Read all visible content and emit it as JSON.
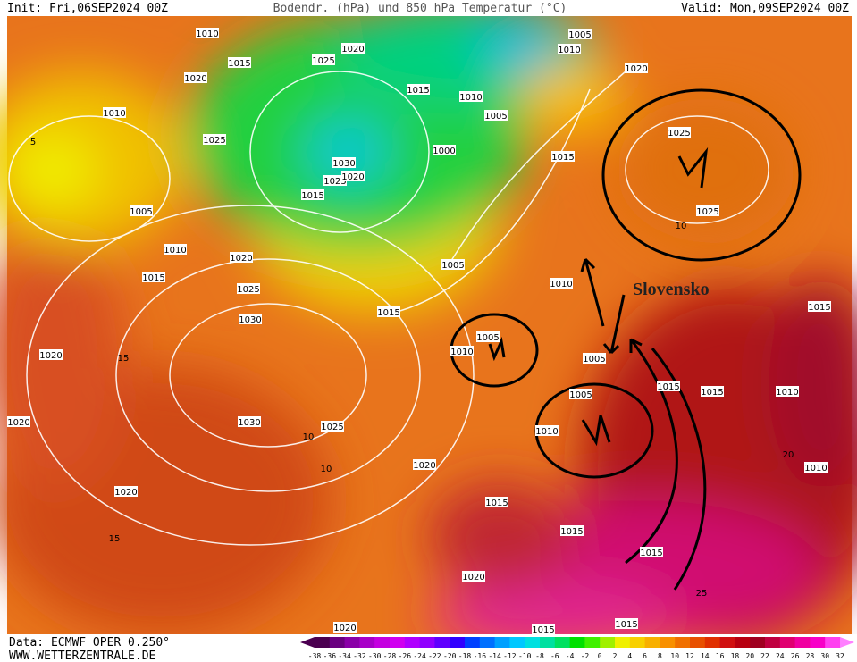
{
  "header": {
    "init": "Init: Fri,06SEP2024 00Z",
    "title": "Bodendr. (hPa) und 850 hPa Temperatur (°C)",
    "valid": "Valid: Mon,09SEP2024 00Z"
  },
  "footer": {
    "source": "Data: ECMWF OPER 0.250°",
    "site": "WWW.WETTERZENTRALE.DE"
  },
  "annotation": "Slovensko",
  "isobar_labels": [
    "1010",
    "1015",
    "1020",
    "1020",
    "1025",
    "1015",
    "1005",
    "1010",
    "1020",
    "1010",
    "1010",
    "1005",
    "1025",
    "1030",
    "1025",
    "1020",
    "1015",
    "1000",
    "1015",
    "1025",
    "1025",
    "1005",
    "1010",
    "1015",
    "1020",
    "1005",
    "1010",
    "1025",
    "1015",
    "1030",
    "1005",
    "1010",
    "1005",
    "1020",
    "1015",
    "1015",
    "1015",
    "1010",
    "1005",
    "1030",
    "1025",
    "1010",
    "1020",
    "1020",
    "1010",
    "1020",
    "1015",
    "1015",
    "1015",
    "1020",
    "1015",
    "1015",
    "1020"
  ],
  "isotherm_labels": [
    "5",
    "10",
    "10",
    "10",
    "15",
    "15",
    "20",
    "25"
  ],
  "colorbar": {
    "ticks": [
      -38,
      -36,
      -34,
      -32,
      -30,
      -28,
      -26,
      -24,
      -22,
      -20,
      -18,
      -16,
      -14,
      -12,
      -10,
      -8,
      -6,
      -4,
      -2,
      0,
      2,
      4,
      6,
      8,
      10,
      12,
      14,
      16,
      18,
      20,
      22,
      24,
      26,
      28,
      30,
      32
    ],
    "colors": [
      "#4b0050",
      "#6a0080",
      "#8a00a8",
      "#a800c8",
      "#c400e0",
      "#d000f0",
      "#b000ff",
      "#9000ff",
      "#6000ff",
      "#3000ff",
      "#0040ff",
      "#0070ff",
      "#00a0ff",
      "#00c8ff",
      "#00e0e0",
      "#00e0a0",
      "#00e060",
      "#00e000",
      "#40f000",
      "#a0f000",
      "#f0f000",
      "#f8d000",
      "#f8b000",
      "#f89000",
      "#f07000",
      "#e85000",
      "#e03000",
      "#d01010",
      "#b80010",
      "#a00020",
      "#c00040",
      "#e00070",
      "#f000a0",
      "#f800c8",
      "#ff40f0",
      "#ff80ff"
    ]
  }
}
